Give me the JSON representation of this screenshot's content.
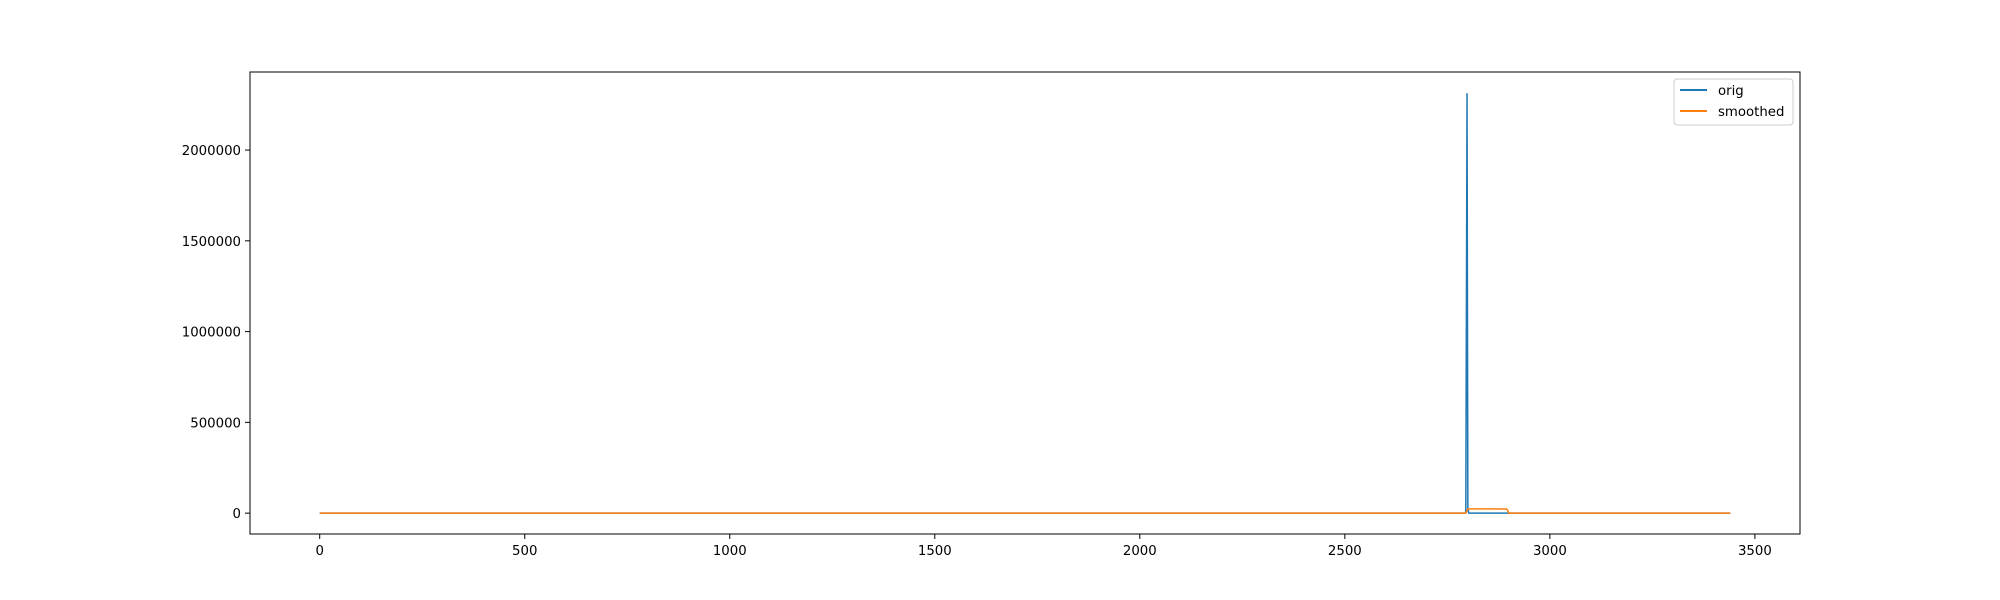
{
  "chart_data": {
    "type": "line",
    "title": "",
    "xlabel": "",
    "ylabel": "",
    "xlim": [
      -170,
      3610
    ],
    "ylim": [
      -115000,
      2430000
    ],
    "x_ticks": [
      {
        "value": 0,
        "label": "0"
      },
      {
        "value": 500,
        "label": "500"
      },
      {
        "value": 1000,
        "label": "1000"
      },
      {
        "value": 1500,
        "label": "1500"
      },
      {
        "value": 2000,
        "label": "2000"
      },
      {
        "value": 2500,
        "label": "2500"
      },
      {
        "value": 3000,
        "label": "3000"
      },
      {
        "value": 3500,
        "label": "3500"
      }
    ],
    "y_ticks": [
      {
        "value": 0,
        "label": "0"
      },
      {
        "value": 500000,
        "label": "500000"
      },
      {
        "value": 1000000,
        "label": "1000000"
      },
      {
        "value": 1500000,
        "label": "1500000"
      },
      {
        "value": 2000000,
        "label": "2000000"
      }
    ],
    "grid": false,
    "legend_position": "top-right",
    "series": [
      {
        "name": "orig",
        "color": "#1f77b4",
        "x": [
          0,
          500,
          1000,
          1500,
          2000,
          2500,
          2790,
          2795,
          2798,
          2800,
          2802,
          2900,
          3000,
          3440
        ],
        "y": [
          0,
          0,
          0,
          0,
          0,
          0,
          0,
          0,
          2310000,
          30000,
          0,
          0,
          0,
          0
        ]
      },
      {
        "name": "smoothed",
        "color": "#ff7f0e",
        "x": [
          0,
          500,
          1000,
          1500,
          2000,
          2500,
          2795,
          2800,
          2805,
          2850,
          2895,
          2900,
          3000,
          3440
        ],
        "y": [
          0,
          0,
          0,
          0,
          0,
          0,
          0,
          23000,
          23100,
          23100,
          23000,
          0,
          0,
          0
        ]
      }
    ]
  }
}
